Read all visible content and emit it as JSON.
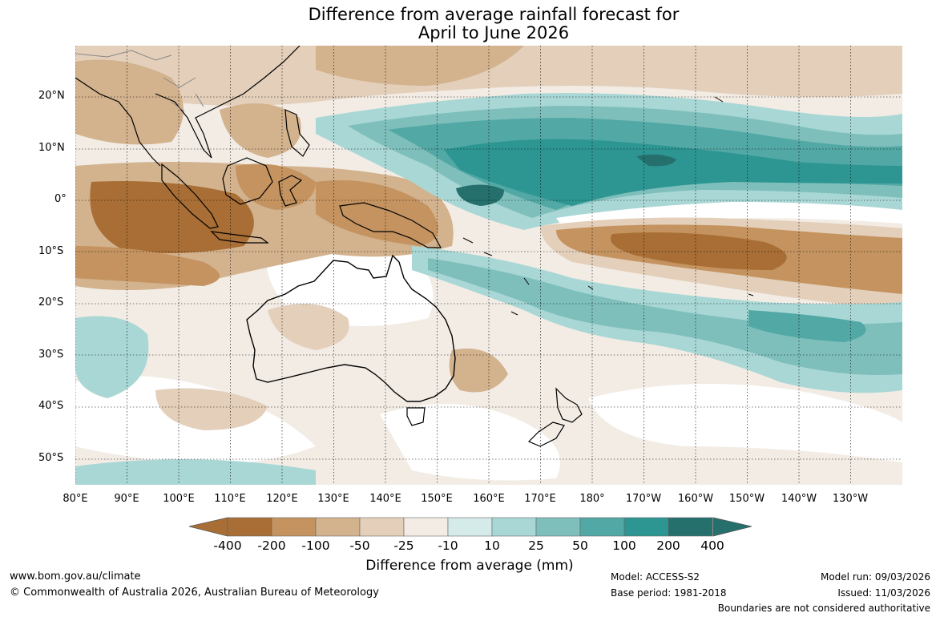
{
  "title": {
    "line1": "Difference from average rainfall forecast for",
    "line2": "April to June 2026"
  },
  "axes": {
    "lat_labels": [
      "20°N",
      "10°N",
      "0°",
      "10°S",
      "20°S",
      "30°S",
      "40°S",
      "50°S"
    ],
    "lon_labels": [
      "80°E",
      "90°E",
      "100°E",
      "110°E",
      "120°E",
      "130°E",
      "140°E",
      "150°E",
      "160°E",
      "170°E",
      "180°",
      "170°W",
      "160°W",
      "150°W",
      "140°W",
      "130°W"
    ]
  },
  "legend": {
    "ticks": [
      "-400",
      "-200",
      "-100",
      "-50",
      "-25",
      "-10",
      "10",
      "25",
      "50",
      "100",
      "200",
      "400"
    ],
    "colors": [
      "#a86e35",
      "#c4935f",
      "#d3b28e",
      "#e3cfba",
      "#f2ece5",
      "#ffffff",
      "#d5ebea",
      "#a9d7d5",
      "#7ebfbc",
      "#52a8a5",
      "#2e9692",
      "#25706c"
    ],
    "label": "Difference from average (mm)"
  },
  "footer": {
    "website": "www.bom.gov.au/climate",
    "copyright": "© Commonwealth of Australia 2026, Australian Bureau of Meteorology",
    "model": "Model: ACCESS-S2",
    "base_period": "Base period: 1981-2018",
    "model_run": "Model run: 09/03/2026",
    "issued": "Issued: 11/03/2026",
    "disclaimer": "Boundaries are not considered authoritative"
  },
  "icons": {
    "colorbar_left_arrow": "triangle-left-icon",
    "colorbar_right_arrow": "triangle-right-icon"
  }
}
